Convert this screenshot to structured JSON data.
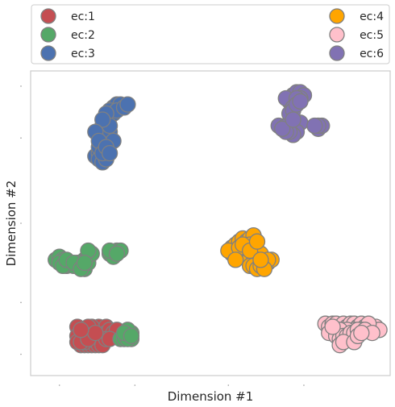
{
  "chart_data": {
    "type": "scatter",
    "title": "",
    "xlabel": "Dimension #1",
    "ylabel": "Dimension #2",
    "xlim": [
      0,
      100
    ],
    "ylim": [
      0,
      100
    ],
    "grid": false,
    "legend_placement": "top, above plot, two columns",
    "marker_edge_color": "#808080",
    "frame_color": "#cccccc",
    "series": [
      {
        "name": "ec:1",
        "color": "#c44e52",
        "points": [
          [
            13,
            16
          ],
          [
            14,
            14
          ],
          [
            15,
            15
          ],
          [
            16,
            13
          ],
          [
            17,
            14
          ],
          [
            18,
            15
          ],
          [
            19,
            16
          ],
          [
            20,
            15
          ],
          [
            19,
            13
          ],
          [
            18,
            12
          ],
          [
            20,
            14
          ],
          [
            21,
            16
          ],
          [
            15,
            12
          ],
          [
            14,
            12
          ],
          [
            16,
            11
          ],
          [
            17,
            11
          ],
          [
            19,
            11
          ],
          [
            20,
            12
          ],
          [
            21,
            14
          ],
          [
            22,
            15
          ],
          [
            18,
            13
          ],
          [
            17,
            16
          ],
          [
            16,
            16
          ],
          [
            13,
            13
          ],
          [
            14,
            10
          ],
          [
            15,
            10
          ],
          [
            16,
            10
          ],
          [
            17,
            10
          ],
          [
            18,
            10
          ],
          [
            19,
            10
          ],
          [
            15,
            11
          ],
          [
            13,
            11
          ],
          [
            14,
            11
          ],
          [
            20,
            10
          ],
          [
            21,
            12
          ],
          [
            23,
            13
          ],
          [
            23,
            14
          ],
          [
            24,
            15
          ],
          [
            22,
            12
          ],
          [
            16,
            12
          ],
          [
            18,
            14
          ],
          [
            14,
            15
          ]
        ]
      },
      {
        "name": "ec:2",
        "color": "#55a868",
        "points": [
          [
            7,
            38
          ],
          [
            8,
            39
          ],
          [
            9,
            38
          ],
          [
            10,
            36
          ],
          [
            11,
            37
          ],
          [
            12,
            36
          ],
          [
            13,
            37
          ],
          [
            14,
            36
          ],
          [
            15,
            35
          ],
          [
            15,
            38
          ],
          [
            16,
            39
          ],
          [
            16,
            37
          ],
          [
            17,
            40
          ],
          [
            16,
            41
          ],
          [
            22,
            40
          ],
          [
            23,
            40
          ],
          [
            24,
            41
          ],
          [
            25,
            41
          ],
          [
            23,
            39
          ],
          [
            22,
            41
          ],
          [
            8,
            37
          ],
          [
            9,
            36
          ],
          [
            10,
            38
          ],
          [
            12,
            37
          ],
          [
            14,
            35
          ],
          [
            15,
            37
          ],
          [
            24,
            40
          ],
          [
            26,
            13
          ],
          [
            27,
            14
          ],
          [
            28,
            14
          ],
          [
            25,
            12
          ],
          [
            26,
            12
          ],
          [
            28,
            12
          ],
          [
            27,
            12
          ],
          [
            27,
            15
          ],
          [
            26,
            14
          ],
          [
            28,
            13
          ]
        ]
      },
      {
        "name": "ec:3",
        "color": "#4c72b0",
        "points": [
          [
            18,
            72
          ],
          [
            19,
            73
          ],
          [
            20,
            74
          ],
          [
            21,
            72
          ],
          [
            19,
            71
          ],
          [
            20,
            70
          ],
          [
            21,
            71
          ],
          [
            19,
            75
          ],
          [
            20,
            76
          ],
          [
            21,
            77
          ],
          [
            20,
            78
          ],
          [
            19,
            80
          ],
          [
            20,
            81
          ],
          [
            21,
            81
          ],
          [
            21,
            79
          ],
          [
            20,
            82
          ],
          [
            21,
            84
          ],
          [
            22,
            85
          ],
          [
            23,
            88
          ],
          [
            24,
            89
          ],
          [
            25,
            89
          ],
          [
            22,
            87
          ],
          [
            23,
            86
          ],
          [
            24,
            87
          ],
          [
            26,
            88
          ],
          [
            27,
            89
          ],
          [
            21,
            86
          ],
          [
            22,
            80
          ],
          [
            22,
            82
          ],
          [
            20,
            84
          ],
          [
            18,
            80
          ],
          [
            22,
            76
          ],
          [
            23,
            77
          ],
          [
            19,
            77
          ],
          [
            20,
            73
          ],
          [
            21,
            75
          ],
          [
            22,
            73
          ]
        ]
      },
      {
        "name": "ec:4",
        "color": "#ffa500",
        "points": [
          [
            56,
            42
          ],
          [
            57,
            43
          ],
          [
            58,
            44
          ],
          [
            59,
            45
          ],
          [
            60,
            44
          ],
          [
            61,
            45
          ],
          [
            62,
            46
          ],
          [
            61,
            43
          ],
          [
            60,
            41
          ],
          [
            59,
            40
          ],
          [
            58,
            39
          ],
          [
            57,
            40
          ],
          [
            56,
            40
          ],
          [
            55,
            41
          ],
          [
            62,
            42
          ],
          [
            63,
            41
          ],
          [
            64,
            40
          ],
          [
            63,
            38
          ],
          [
            62,
            37
          ],
          [
            61,
            36
          ],
          [
            62,
            36
          ],
          [
            63,
            35
          ],
          [
            64,
            36
          ],
          [
            65,
            37
          ],
          [
            66,
            37
          ],
          [
            67,
            38
          ],
          [
            66,
            38
          ],
          [
            65,
            35
          ],
          [
            58,
            42
          ],
          [
            59,
            43
          ],
          [
            61,
            41
          ],
          [
            63,
            44
          ],
          [
            64,
            38
          ],
          [
            57,
            38
          ]
        ]
      },
      {
        "name": "ec:5",
        "color": "#ffc0cb",
        "points": [
          [
            82,
            17
          ],
          [
            83,
            16
          ],
          [
            84,
            17
          ],
          [
            85,
            17
          ],
          [
            86,
            16
          ],
          [
            87,
            17
          ],
          [
            88,
            16
          ],
          [
            89,
            17
          ],
          [
            90,
            17
          ],
          [
            91,
            16
          ],
          [
            92,
            17
          ],
          [
            93,
            16
          ],
          [
            94,
            15
          ],
          [
            95,
            16
          ],
          [
            96,
            16
          ],
          [
            97,
            15
          ],
          [
            94,
            17
          ],
          [
            92,
            15
          ],
          [
            90,
            15
          ],
          [
            88,
            15
          ],
          [
            86,
            15
          ],
          [
            84,
            15
          ],
          [
            83,
            14
          ],
          [
            85,
            13
          ],
          [
            86,
            12
          ],
          [
            87,
            13
          ],
          [
            88,
            13
          ],
          [
            89,
            14
          ],
          [
            90,
            14
          ],
          [
            91,
            15
          ],
          [
            93,
            15
          ],
          [
            95,
            14
          ],
          [
            86,
            10
          ],
          [
            87,
            11
          ],
          [
            90,
            11
          ],
          [
            91,
            13
          ],
          [
            84,
            16
          ],
          [
            92,
            14
          ]
        ]
      },
      {
        "name": "ec:6",
        "color": "#8172b3",
        "points": [
          [
            69,
            82
          ],
          [
            70,
            81
          ],
          [
            71,
            82
          ],
          [
            72,
            83
          ],
          [
            73,
            82
          ],
          [
            74,
            82
          ],
          [
            75,
            83
          ],
          [
            73,
            81
          ],
          [
            74,
            80
          ],
          [
            73,
            79
          ],
          [
            72,
            80
          ],
          [
            71,
            80
          ],
          [
            70,
            81
          ],
          [
            72,
            91
          ],
          [
            73,
            92
          ],
          [
            74,
            93
          ],
          [
            75,
            93
          ],
          [
            76,
            92
          ],
          [
            75,
            91
          ],
          [
            74,
            90
          ],
          [
            73,
            89
          ],
          [
            72,
            90
          ],
          [
            71,
            91
          ],
          [
            73,
            88
          ],
          [
            74,
            91
          ],
          [
            80,
            81
          ],
          [
            81,
            82
          ],
          [
            80,
            82
          ],
          [
            79,
            82
          ],
          [
            72,
            86
          ],
          [
            73,
            87
          ],
          [
            74,
            89
          ],
          [
            75,
            90
          ],
          [
            73,
            84
          ]
        ]
      }
    ]
  }
}
